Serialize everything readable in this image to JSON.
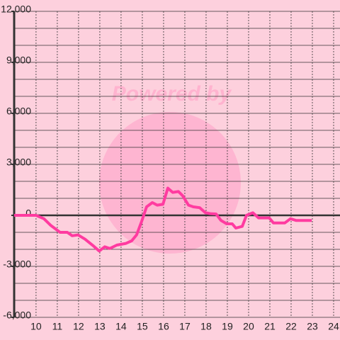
{
  "chart_data": {
    "type": "line",
    "watermark": "Powered by",
    "x": [
      8.97,
      10.0,
      10.37,
      10.7,
      11.13,
      11.47,
      11.7,
      11.97,
      12.3,
      12.7,
      12.97,
      13.23,
      13.47,
      13.8,
      14.23,
      14.5,
      14.73,
      14.97,
      15.2,
      15.47,
      15.7,
      15.97,
      16.2,
      16.43,
      16.7,
      16.9,
      17.17,
      17.4,
      17.7,
      17.97,
      18.2,
      18.47,
      18.7,
      18.97,
      19.23,
      19.4,
      19.7,
      19.9,
      20.2,
      20.47,
      20.97,
      21.17,
      21.7,
      21.97,
      22.23,
      22.97
    ],
    "series": [
      {
        "color": "#ff3ba0",
        "values": [
          0,
          0,
          -200,
          -600,
          -1000,
          -1000,
          -1200,
          -1150,
          -1400,
          -1800,
          -2100,
          -1850,
          -1950,
          -1750,
          -1650,
          -1500,
          -1150,
          -350,
          500,
          750,
          600,
          650,
          1600,
          1350,
          1400,
          1150,
          600,
          500,
          450,
          150,
          100,
          80,
          -300,
          -500,
          -500,
          -750,
          -650,
          0,
          150,
          -150,
          -150,
          -450,
          -450,
          -200,
          -300,
          -300
        ]
      }
    ],
    "xlim": [
      8.97,
      24.3
    ],
    "xticks": [
      10,
      11,
      12,
      13,
      14,
      15,
      16,
      17,
      18,
      19,
      20,
      21,
      22,
      23,
      24
    ],
    "ylim": [
      -6000,
      12000
    ],
    "yticks": [
      {
        "value": -6000,
        "label": "-6,000"
      },
      {
        "value": -3000,
        "label": "-3,000"
      },
      0,
      {
        "value": 3000,
        "label": "3,000"
      },
      {
        "value": 6000,
        "label": "6,000"
      },
      {
        "value": 9000,
        "label": "9,000"
      },
      {
        "value": 12000,
        "label": "12,000"
      }
    ],
    "yminorticks": [
      -5000,
      -4000,
      -2000,
      -1000,
      1000,
      2000,
      4000,
      5000,
      7000,
      8000,
      10000,
      11000
    ],
    "grid": true
  }
}
